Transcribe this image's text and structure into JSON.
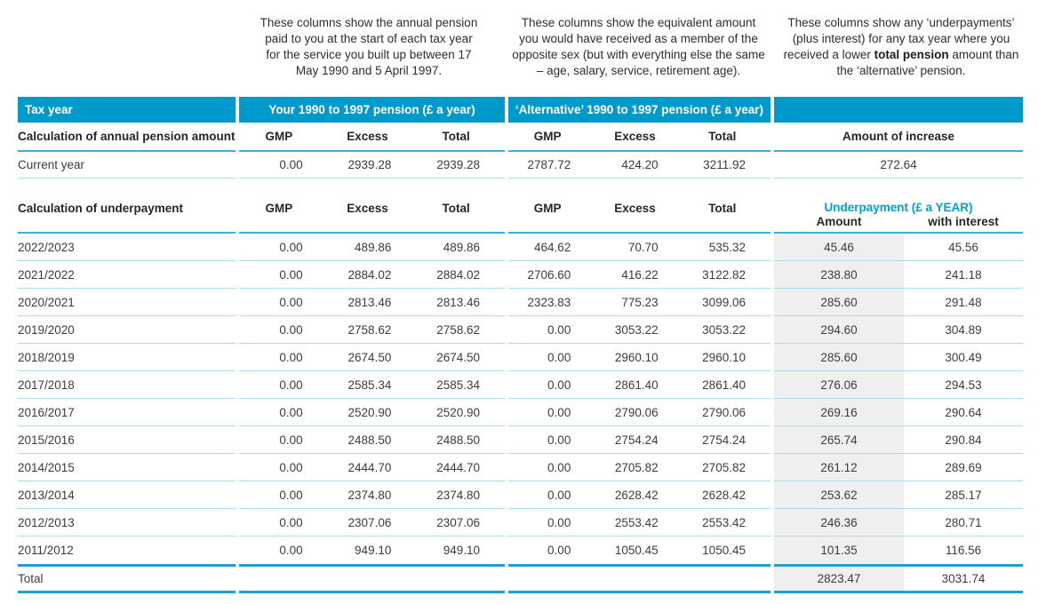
{
  "colors": {
    "header_band": "#0099cb",
    "accent_text": "#00a0d6",
    "section_line": "#3fadda",
    "row_line": "#abdcee",
    "total_line": "#1f9dd6",
    "shaded_column": "#efefef"
  },
  "notes": {
    "your": "These columns show the annual pension paid to you at the start of each tax year for the service you built up between 17 May 1990 and 5 April 1997.",
    "alternative": "These columns show the equivalent amount you would have received as a member of the opposite sex (but with everything else the same – age, salary, service, retirement age).",
    "under_before": "These columns show any ‘underpayments’ (plus interest) for any tax year where you received a lower ",
    "under_bold": "total pension",
    "under_after": " amount than the ‘alternative’ pension."
  },
  "band": {
    "tax_year": "Tax year",
    "your": "Your 1990 to 1997 pension (£ a year)",
    "alternative": "‘Alternative’ 1990 to 1997 pension (£ a year)"
  },
  "annual": {
    "label": "Calculation of annual pension amount",
    "cols": [
      "GMP",
      "Excess",
      "Total",
      "GMP",
      "Excess",
      "Total"
    ],
    "increase_label": "Amount of increase",
    "row_label": "Current year",
    "values": [
      "0.00",
      "2939.28",
      "2939.28",
      "2787.72",
      "424.20",
      "3211.92"
    ],
    "increase": "272.64"
  },
  "underpayment": {
    "label": "Calculation of underpayment",
    "cols": [
      "GMP",
      "Excess",
      "Total",
      "GMP",
      "Excess",
      "Total"
    ],
    "group_label": "Underpayment (£ a YEAR)",
    "amount_label": "Amount",
    "interest_label": "with interest",
    "rows": [
      {
        "year": "2022/2023",
        "values": [
          "0.00",
          "489.86",
          "489.86",
          "464.62",
          "70.70",
          "535.32"
        ],
        "amount": "45.46",
        "interest": "45.56"
      },
      {
        "year": "2021/2022",
        "values": [
          "0.00",
          "2884.02",
          "2884.02",
          "2706.60",
          "416.22",
          "3122.82"
        ],
        "amount": "238.80",
        "interest": "241.18"
      },
      {
        "year": "2020/2021",
        "values": [
          "0.00",
          "2813.46",
          "2813.46",
          "2323.83",
          "775.23",
          "3099.06"
        ],
        "amount": "285.60",
        "interest": "291.48"
      },
      {
        "year": "2019/2020",
        "values": [
          "0.00",
          "2758.62",
          "2758.62",
          "0.00",
          "3053.22",
          "3053.22"
        ],
        "amount": "294.60",
        "interest": "304.89"
      },
      {
        "year": "2018/2019",
        "values": [
          "0.00",
          "2674.50",
          "2674.50",
          "0.00",
          "2960.10",
          "2960.10"
        ],
        "amount": "285.60",
        "interest": "300.49"
      },
      {
        "year": "2017/2018",
        "values": [
          "0.00",
          "2585.34",
          "2585.34",
          "0.00",
          "2861.40",
          "2861.40"
        ],
        "amount": "276.06",
        "interest": "294.53"
      },
      {
        "year": "2016/2017",
        "values": [
          "0.00",
          "2520.90",
          "2520.90",
          "0.00",
          "2790.06",
          "2790.06"
        ],
        "amount": "269.16",
        "interest": "290.64"
      },
      {
        "year": "2015/2016",
        "values": [
          "0.00",
          "2488.50",
          "2488.50",
          "0.00",
          "2754.24",
          "2754.24"
        ],
        "amount": "265.74",
        "interest": "290.84"
      },
      {
        "year": "2014/2015",
        "values": [
          "0.00",
          "2444.70",
          "2444.70",
          "0.00",
          "2705.82",
          "2705.82"
        ],
        "amount": "261.12",
        "interest": "289.69"
      },
      {
        "year": "2013/2014",
        "values": [
          "0.00",
          "2374.80",
          "2374.80",
          "0.00",
          "2628.42",
          "2628.42"
        ],
        "amount": "253.62",
        "interest": "285.17"
      },
      {
        "year": "2012/2013",
        "values": [
          "0.00",
          "2307.06",
          "2307.06",
          "0.00",
          "2553.42",
          "2553.42"
        ],
        "amount": "246.36",
        "interest": "280.71"
      },
      {
        "year": "2011/2012",
        "values": [
          "0.00",
          "949.10",
          "949.10",
          "0.00",
          "1050.45",
          "1050.45"
        ],
        "amount": "101.35",
        "interest": "116.56"
      }
    ],
    "total_label": "Total",
    "total_amount": "2823.47",
    "total_interest": "3031.74"
  }
}
